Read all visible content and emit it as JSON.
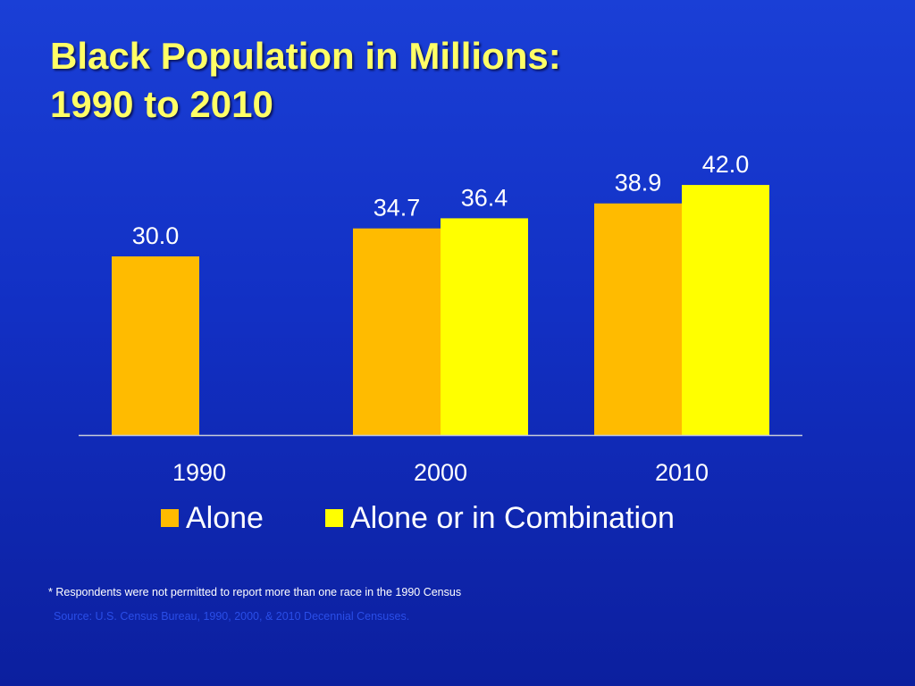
{
  "slide": {
    "title_line1": "Black Population in Millions:",
    "title_line2": "1990 to 2010",
    "footnote": "* Respondents were not permitted to report more than one race in the 1990 Census",
    "source": "Source: U.S. Census Bureau, 1990,  2000, & 2010 Decennial Censuses."
  },
  "chart_data": {
    "type": "bar",
    "title": "Black Population in Millions: 1990 to 2010",
    "xlabel": "",
    "ylabel": "",
    "categories": [
      "1990",
      "2000",
      "2010"
    ],
    "series": [
      {
        "name": "Alone",
        "values": [
          30.0,
          34.7,
          38.9
        ],
        "labels": [
          "30.0",
          "34.7",
          "38.9"
        ],
        "color": "#ffbb00"
      },
      {
        "name": "Alone or in Combination",
        "values": [
          null,
          36.4,
          42.0
        ],
        "labels": [
          "",
          "36.4",
          "42.0"
        ],
        "color": "#ffff00"
      }
    ],
    "ylim": [
      0,
      50
    ],
    "grid": false,
    "legend": "bottom",
    "colors": {
      "axis": "#c8ccd8",
      "labels": "#ffffff"
    }
  }
}
